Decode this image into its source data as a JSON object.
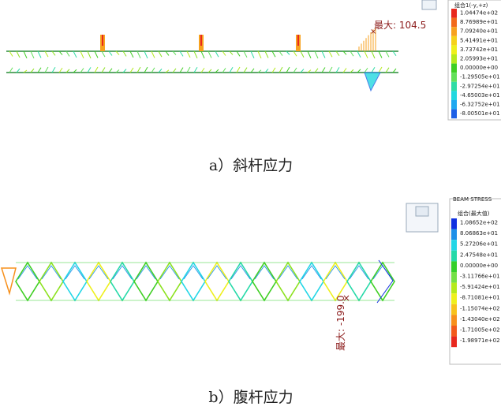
{
  "panels": [
    {
      "legend": {
        "title": "组合1(-y,+z)",
        "items": [
          {
            "label": "1.04474e+02",
            "color": "#e8281e"
          },
          {
            "label": "8.76989e+01",
            "color": "#f26a1c"
          },
          {
            "label": "7.09240e+01",
            "color": "#f7a21f"
          },
          {
            "label": "5.41491e+01",
            "color": "#f5d21a"
          },
          {
            "label": "3.73742e+01",
            "color": "#eef01c"
          },
          {
            "label": "2.05993e+01",
            "color": "#b6ea1e"
          },
          {
            "label": "0.00000e+00",
            "color": "#3fcf23"
          },
          {
            "label": "-1.29505e+01",
            "color": "#63e05a"
          },
          {
            "label": "-2.97254e+01",
            "color": "#2fdca4"
          },
          {
            "label": "-4.65003e+01",
            "color": "#22d8e0"
          },
          {
            "label": "-6.32752e+01",
            "color": "#1fa8f0"
          },
          {
            "label": "-8.00501e+01",
            "color": "#1d5fe6"
          }
        ]
      },
      "annotation": "最大: 104.5",
      "caption": "a）斜杆应力"
    },
    {
      "legend": {
        "header": "BEAM STRESS",
        "title": "组合(最大值)",
        "items": [
          {
            "label": "1.08652e+02",
            "color": "#1030e0"
          },
          {
            "label": "8.06863e+01",
            "color": "#1e8fe8"
          },
          {
            "label": "5.27206e+01",
            "color": "#22d6e6"
          },
          {
            "label": "2.47548e+01",
            "color": "#25d9a8"
          },
          {
            "label": "0.00000e+00",
            "color": "#34cf2a"
          },
          {
            "label": "-3.11766e+01",
            "color": "#74e046"
          },
          {
            "label": "-5.91424e+01",
            "color": "#b4ea1c"
          },
          {
            "label": "-8.71081e+01",
            "color": "#eef01c"
          },
          {
            "label": "-1.15074e+02",
            "color": "#f7c21c"
          },
          {
            "label": "-1.43040e+02",
            "color": "#f7901c"
          },
          {
            "label": "-1.71005e+02",
            "color": "#f25a1c"
          },
          {
            "label": "-1.98971e+02",
            "color": "#e8281e"
          }
        ]
      },
      "annotation": "最大: -199.0",
      "caption": "b）腹杆应力"
    }
  ]
}
